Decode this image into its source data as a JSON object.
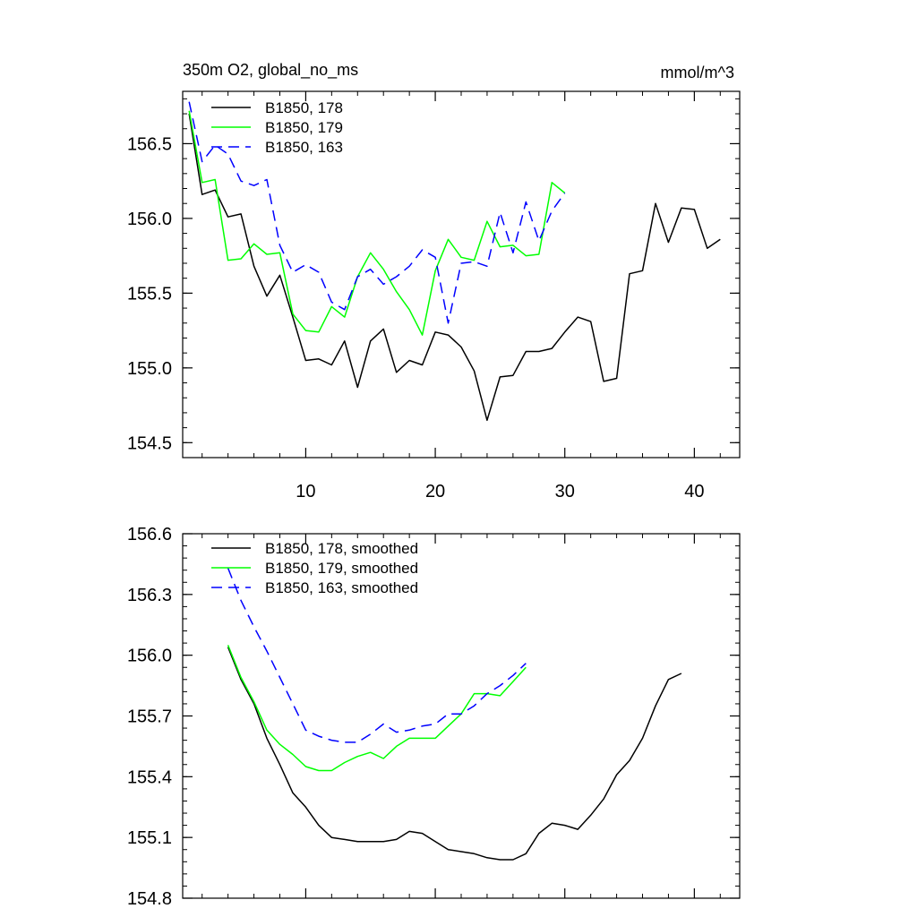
{
  "chart_data": [
    {
      "type": "line",
      "title": "350m O2, global_no_ms",
      "units": "mmol/m^3",
      "xlim": [
        0.5,
        43.5
      ],
      "ylim": [
        154.4,
        156.85
      ],
      "xticks": [
        10,
        20,
        30,
        40
      ],
      "xtick_labels": [
        "10",
        "20",
        "30",
        "40"
      ],
      "yticks": [
        154.5,
        155.0,
        155.5,
        156.0,
        156.5
      ],
      "ytick_labels": [
        "154.5",
        "155.0",
        "155.5",
        "156.0",
        "156.5"
      ],
      "legend_position": "top-left",
      "series": [
        {
          "name": "B1850, 178",
          "color": "#000000",
          "dash": "solid",
          "x": [
            1,
            2,
            3,
            4,
            5,
            6,
            7,
            8,
            9,
            10,
            11,
            12,
            13,
            14,
            15,
            16,
            17,
            18,
            19,
            20,
            21,
            22,
            23,
            24,
            25,
            26,
            27,
            28,
            29,
            30,
            31,
            32,
            33,
            34,
            35,
            36,
            37,
            38,
            39,
            40,
            41,
            42
          ],
          "y": [
            156.7,
            156.16,
            156.19,
            156.01,
            156.03,
            155.68,
            155.48,
            155.62,
            155.34,
            155.05,
            155.06,
            155.02,
            155.18,
            154.87,
            155.18,
            155.26,
            154.97,
            155.05,
            155.02,
            155.24,
            155.22,
            155.14,
            154.98,
            154.65,
            154.94,
            154.95,
            155.11,
            155.11,
            155.13,
            155.24,
            155.34,
            155.31,
            154.91,
            154.93,
            155.63,
            155.65,
            156.1,
            155.84,
            156.07,
            156.06,
            155.8,
            155.86
          ]
        },
        {
          "name": "B1850, 179",
          "color": "#00ff00",
          "dash": "solid",
          "x": [
            1,
            2,
            3,
            4,
            5,
            6,
            7,
            8,
            9,
            10,
            11,
            12,
            13,
            14,
            15,
            16,
            17,
            18,
            19,
            20,
            21,
            22,
            23,
            24,
            25,
            26,
            27,
            28,
            29,
            30
          ],
          "y": [
            156.72,
            156.24,
            156.26,
            155.72,
            155.73,
            155.83,
            155.76,
            155.77,
            155.36,
            155.25,
            155.24,
            155.41,
            155.34,
            155.61,
            155.77,
            155.66,
            155.51,
            155.39,
            155.22,
            155.65,
            155.86,
            155.74,
            155.72,
            155.98,
            155.81,
            155.82,
            155.75,
            155.76,
            156.24,
            156.17
          ]
        },
        {
          "name": "B1850, 163",
          "color": "#0000ff",
          "dash": "dashed",
          "x": [
            1,
            2,
            3,
            4,
            5,
            6,
            7,
            8,
            9,
            10,
            11,
            12,
            13,
            14,
            15,
            16,
            17,
            18,
            19,
            20,
            21,
            22,
            23,
            24,
            25,
            26,
            27,
            28,
            29,
            30
          ],
          "y": [
            156.78,
            156.38,
            156.49,
            156.43,
            156.25,
            156.22,
            156.26,
            155.82,
            155.64,
            155.69,
            155.64,
            155.44,
            155.39,
            155.61,
            155.66,
            155.56,
            155.61,
            155.68,
            155.79,
            155.74,
            155.3,
            155.7,
            155.71,
            155.68,
            156.04,
            155.77,
            156.11,
            155.85,
            156.05,
            156.17
          ]
        }
      ]
    },
    {
      "type": "line",
      "title": "",
      "xlim": [
        0.5,
        43.5
      ],
      "ylim": [
        154.8,
        156.6
      ],
      "xticks": [
        10,
        20,
        30,
        40
      ],
      "xtick_labels": [],
      "yticks": [
        154.8,
        155.1,
        155.4,
        155.7,
        156.0,
        156.3,
        156.6
      ],
      "ytick_labels": [
        "154.8",
        "155.1",
        "155.4",
        "155.7",
        "156.0",
        "156.3",
        "156.6"
      ],
      "legend_position": "top-left",
      "series": [
        {
          "name": "B1850, 178, smoothed",
          "color": "#000000",
          "dash": "solid",
          "x": [
            4,
            5,
            6,
            7,
            8,
            9,
            10,
            11,
            12,
            13,
            14,
            15,
            16,
            17,
            18,
            19,
            20,
            21,
            22,
            23,
            24,
            25,
            26,
            27,
            28,
            29,
            30,
            31,
            32,
            33,
            34,
            35,
            36,
            37,
            38,
            39
          ],
          "y": [
            156.04,
            155.88,
            155.76,
            155.59,
            155.46,
            155.32,
            155.25,
            155.16,
            155.1,
            155.09,
            155.08,
            155.08,
            155.08,
            155.09,
            155.13,
            155.12,
            155.08,
            155.04,
            155.03,
            155.02,
            155.0,
            154.99,
            154.99,
            155.02,
            155.12,
            155.17,
            155.16,
            155.14,
            155.21,
            155.29,
            155.41,
            155.48,
            155.59,
            155.75,
            155.88,
            155.91
          ]
        },
        {
          "name": "B1850, 179, smoothed",
          "color": "#00ff00",
          "dash": "solid",
          "x": [
            4,
            5,
            6,
            7,
            8,
            9,
            10,
            11,
            12,
            13,
            14,
            15,
            16,
            17,
            18,
            19,
            20,
            21,
            22,
            23,
            24,
            25,
            26,
            27
          ],
          "y": [
            156.05,
            155.89,
            155.77,
            155.63,
            155.56,
            155.51,
            155.45,
            155.43,
            155.43,
            155.47,
            155.5,
            155.52,
            155.49,
            155.55,
            155.59,
            155.59,
            155.59,
            155.65,
            155.71,
            155.81,
            155.81,
            155.8,
            155.87,
            155.94
          ]
        },
        {
          "name": "B1850, 163, smoothed",
          "color": "#0000ff",
          "dash": "dashed",
          "x": [
            4,
            5,
            6,
            7,
            8,
            9,
            10,
            11,
            12,
            13,
            14,
            15,
            16,
            17,
            18,
            19,
            20,
            21,
            22,
            23,
            24,
            25,
            26,
            27
          ],
          "y": [
            156.43,
            156.27,
            156.14,
            156.02,
            155.89,
            155.76,
            155.63,
            155.6,
            155.58,
            155.57,
            155.57,
            155.61,
            155.66,
            155.62,
            155.63,
            155.65,
            155.66,
            155.71,
            155.71,
            155.75,
            155.81,
            155.85,
            155.9,
            155.96
          ]
        }
      ]
    }
  ]
}
